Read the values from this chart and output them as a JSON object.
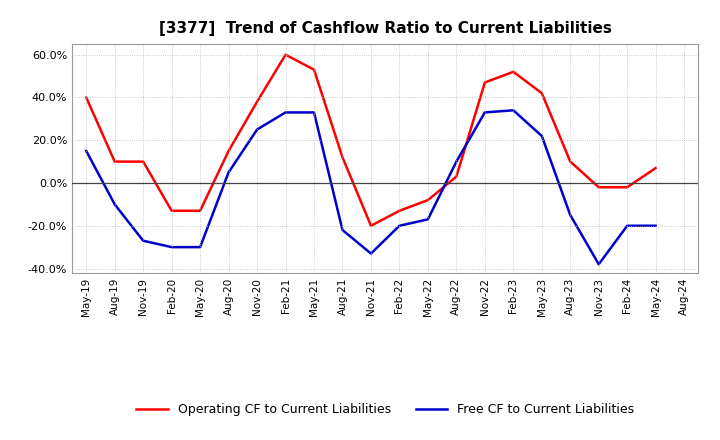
{
  "title": "[3377]  Trend of Cashflow Ratio to Current Liabilities",
  "x_labels": [
    "May-19",
    "Aug-19",
    "Nov-19",
    "Feb-20",
    "May-20",
    "Aug-20",
    "Nov-20",
    "Feb-21",
    "May-21",
    "Aug-21",
    "Nov-21",
    "Feb-22",
    "May-22",
    "Aug-22",
    "Nov-22",
    "Feb-23",
    "May-23",
    "Aug-23",
    "Nov-23",
    "Feb-24",
    "May-24",
    "Aug-24"
  ],
  "operating_cf": [
    0.4,
    0.1,
    0.1,
    -0.13,
    -0.13,
    0.15,
    0.38,
    0.6,
    0.53,
    0.12,
    -0.2,
    -0.13,
    -0.08,
    0.03,
    0.47,
    0.52,
    0.42,
    0.1,
    -0.02,
    -0.02,
    0.07,
    null
  ],
  "free_cf": [
    0.15,
    -0.1,
    -0.27,
    -0.3,
    -0.3,
    0.05,
    0.25,
    0.33,
    0.33,
    -0.22,
    -0.33,
    -0.2,
    -0.17,
    0.1,
    0.33,
    0.34,
    0.22,
    -0.15,
    -0.38,
    -0.2,
    -0.2,
    null
  ],
  "operating_color": "#FF0000",
  "free_color": "#0000CC",
  "ylim": [
    -0.42,
    0.65
  ],
  "yticks": [
    -0.4,
    -0.2,
    0.0,
    0.2,
    0.4,
    0.6
  ],
  "background_color": "#FFFFFF",
  "plot_bg_color": "#FFFFFF",
  "grid_color": "#BBBBBB",
  "legend_op": "Operating CF to Current Liabilities",
  "legend_free": "Free CF to Current Liabilities",
  "title_fontsize": 11,
  "tick_fontsize": 7.5,
  "legend_fontsize": 9
}
